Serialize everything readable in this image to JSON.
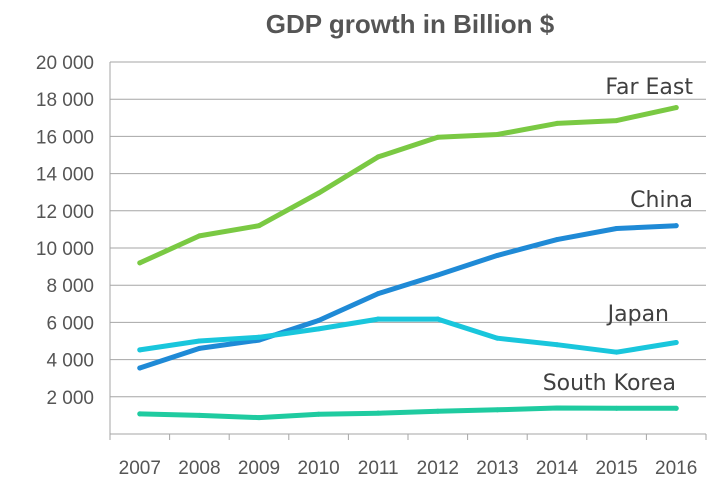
{
  "chart_data": {
    "type": "line",
    "title": "GDP growth in Billion $",
    "xlabel": "",
    "ylabel": "",
    "categories": [
      "2007",
      "2008",
      "2009",
      "2010",
      "2011",
      "2012",
      "2013",
      "2014",
      "2015",
      "2016"
    ],
    "y_ticks": [
      "20 000",
      "18 000",
      "16 000",
      "14 000",
      "12 000",
      "10 000",
      "8 000",
      "6 000",
      "4 000",
      "2 000"
    ],
    "ylim": [
      0,
      20000
    ],
    "grid": true,
    "legend": "inline labels",
    "series": [
      {
        "name": "Far East",
        "color": "#7ac943",
        "values": [
          9200,
          10650,
          11200,
          12950,
          14900,
          15950,
          16100,
          16700,
          16850,
          17550
        ]
      },
      {
        "name": "China",
        "color": "#1f8ad6",
        "values": [
          3550,
          4600,
          5050,
          6100,
          7550,
          8550,
          9600,
          10450,
          11050,
          11200
        ]
      },
      {
        "name": "Japan",
        "color": "#19c6dc",
        "values": [
          4520,
          5000,
          5200,
          5650,
          6180,
          6180,
          5150,
          4800,
          4400,
          4920
        ]
      },
      {
        "name": "South Korea",
        "color": "#1fcba0",
        "values": [
          1080,
          1000,
          880,
          1060,
          1120,
          1220,
          1300,
          1400,
          1380,
          1380
        ]
      }
    ]
  }
}
